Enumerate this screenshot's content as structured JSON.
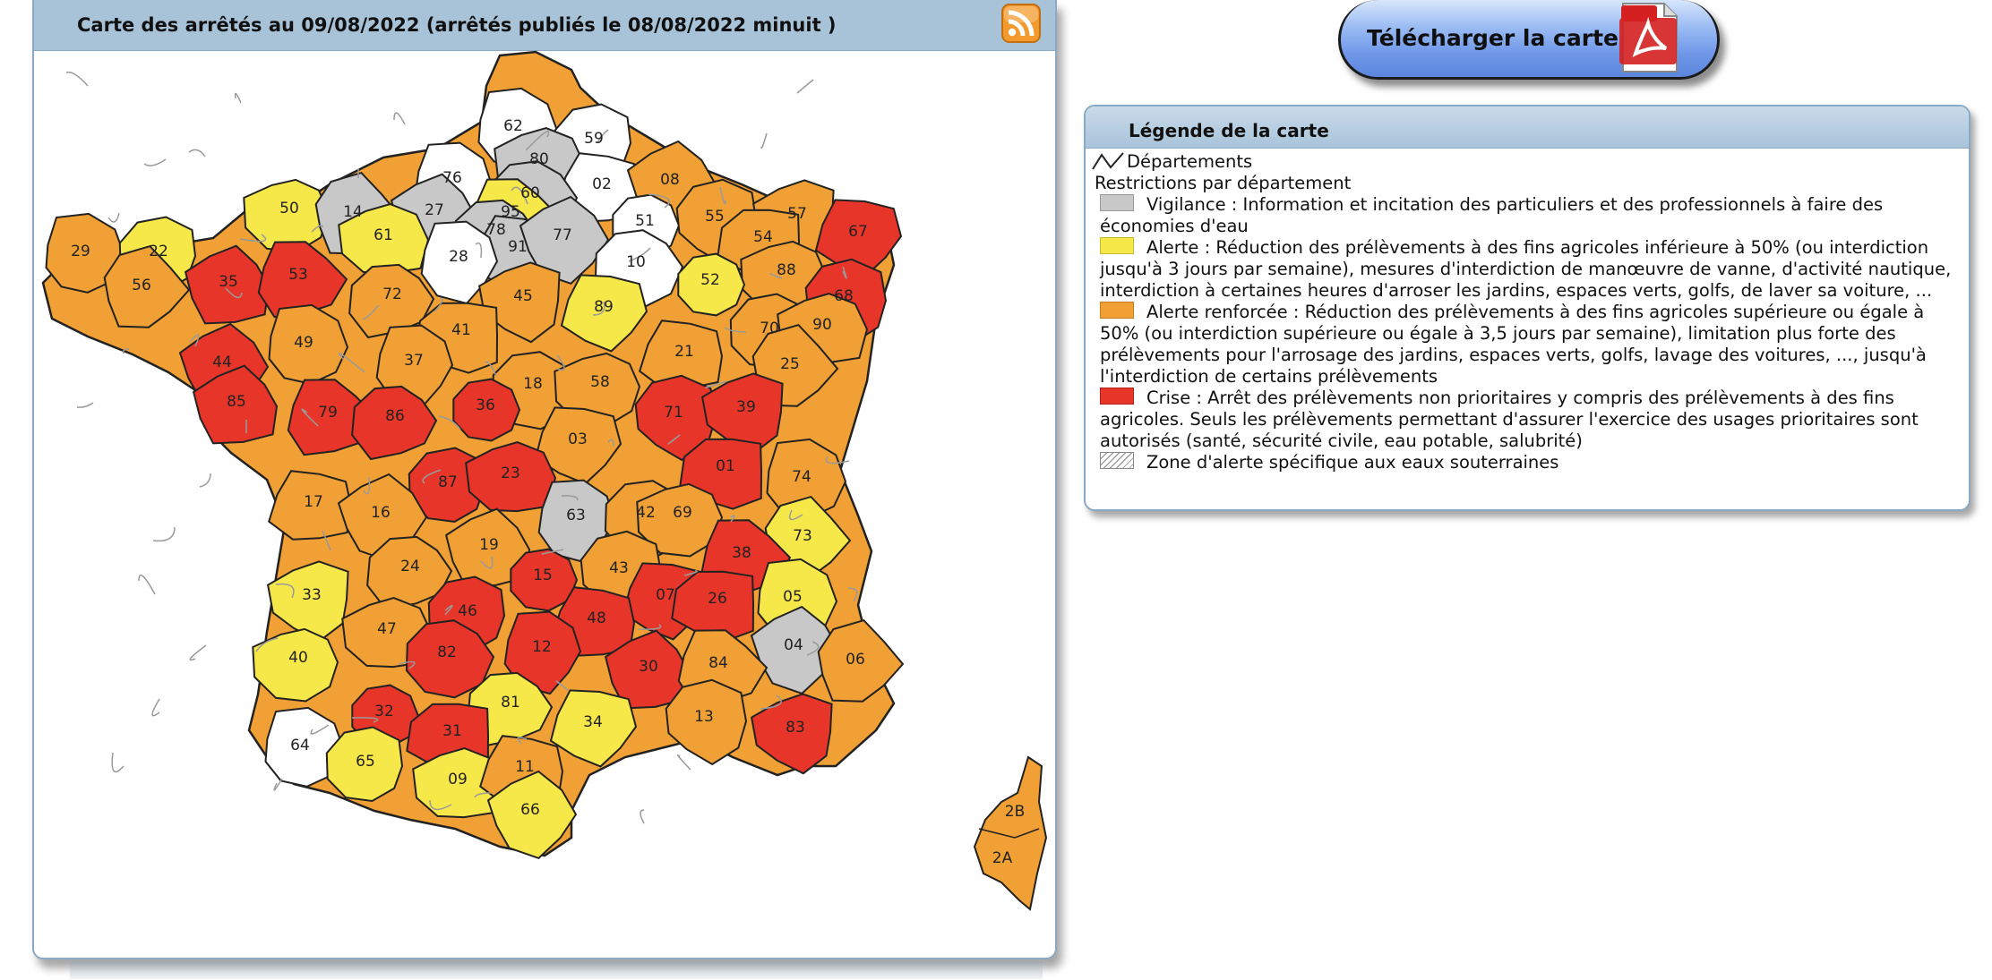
{
  "map_panel": {
    "title": "Carte des arrêtés au 09/08/2022 (arrêtés publiés le 08/08/2022 minuit )",
    "rss_icon": "rss-feed-icon"
  },
  "download": {
    "label": "Télécharger la carte",
    "icon": "pdf-file-icon"
  },
  "legend": {
    "title": "Légende de la carte",
    "departments_label": "Départements",
    "restrictions_label": "Restrictions par département",
    "items": [
      {
        "key": "vigilance",
        "color": "#c8c8c8",
        "text": "Vigilance : Information et incitation des particuliers et des professionnels à faire des économies d'eau"
      },
      {
        "key": "alerte",
        "color": "#f7e84a",
        "text": "Alerte : Réduction des prélèvements à des fins agricoles inférieure à 50% (ou interdiction jusqu'à 3 jours par semaine), mesures d'interdiction de manœuvre de vanne, d'activité nautique, interdiction à certaines heures d'arroser les jardins, espaces verts, golfs, de laver sa voiture, ..."
      },
      {
        "key": "alerte_renforcee",
        "color": "#f0a034",
        "text": "Alerte renforcée : Réduction des prélèvements à des fins agricoles supérieure ou égale à 50% (ou interdiction supérieure ou égale à 3,5 jours par semaine), limitation plus forte des prélèvements pour l'arrosage des jardins, espaces verts, golfs, lavage des voitures, ..., jusqu'à l'interdiction de certains prélèvements"
      },
      {
        "key": "crise",
        "color": "#e8352a",
        "text": "Crise : Arrêt des prélèvements non prioritaires y compris des prélèvements à des fins agricoles. Seuls les prélèvements permettant d'assurer l'exercice des usages prioritaires sont autorisés (santé, sécurité civile, eau potable, salubrité)"
      },
      {
        "key": "zone_souterraine",
        "color": "#ffffff",
        "text": "Zone d'alerte spécifique aux eaux souterraines"
      }
    ]
  },
  "departments": [
    {
      "code": "62",
      "level": "white"
    },
    {
      "code": "59",
      "level": "white"
    },
    {
      "code": "80",
      "level": "grey"
    },
    {
      "code": "02",
      "level": "white"
    },
    {
      "code": "08",
      "level": "orange"
    },
    {
      "code": "76",
      "level": "white"
    },
    {
      "code": "60",
      "level": "grey"
    },
    {
      "code": "50",
      "level": "yellow"
    },
    {
      "code": "14",
      "level": "grey"
    },
    {
      "code": "27",
      "level": "grey"
    },
    {
      "code": "95",
      "level": "yellow"
    },
    {
      "code": "78",
      "level": "grey"
    },
    {
      "code": "51",
      "level": "white"
    },
    {
      "code": "55",
      "level": "orange"
    },
    {
      "code": "57",
      "level": "orange"
    },
    {
      "code": "67",
      "level": "red"
    },
    {
      "code": "54",
      "level": "orange"
    },
    {
      "code": "29",
      "level": "orange"
    },
    {
      "code": "22",
      "level": "yellow"
    },
    {
      "code": "61",
      "level": "yellow"
    },
    {
      "code": "91",
      "level": "grey"
    },
    {
      "code": "77",
      "level": "grey"
    },
    {
      "code": "28",
      "level": "white"
    },
    {
      "code": "10",
      "level": "white"
    },
    {
      "code": "88",
      "level": "orange"
    },
    {
      "code": "56",
      "level": "orange"
    },
    {
      "code": "35",
      "level": "red"
    },
    {
      "code": "53",
      "level": "red"
    },
    {
      "code": "72",
      "level": "orange"
    },
    {
      "code": "52",
      "level": "yellow"
    },
    {
      "code": "68",
      "level": "red"
    },
    {
      "code": "45",
      "level": "orange"
    },
    {
      "code": "89",
      "level": "yellow"
    },
    {
      "code": "41",
      "level": "orange"
    },
    {
      "code": "49",
      "level": "orange"
    },
    {
      "code": "70",
      "level": "orange"
    },
    {
      "code": "90",
      "level": "orange"
    },
    {
      "code": "21",
      "level": "orange"
    },
    {
      "code": "44",
      "level": "red"
    },
    {
      "code": "37",
      "level": "orange"
    },
    {
      "code": "18",
      "level": "orange"
    },
    {
      "code": "58",
      "level": "orange"
    },
    {
      "code": "25",
      "level": "orange"
    },
    {
      "code": "85",
      "level": "red"
    },
    {
      "code": "79",
      "level": "red"
    },
    {
      "code": "86",
      "level": "red"
    },
    {
      "code": "36",
      "level": "red"
    },
    {
      "code": "71",
      "level": "red"
    },
    {
      "code": "39",
      "level": "red"
    },
    {
      "code": "03",
      "level": "orange"
    },
    {
      "code": "01",
      "level": "red"
    },
    {
      "code": "74",
      "level": "orange"
    },
    {
      "code": "87",
      "level": "red"
    },
    {
      "code": "23",
      "level": "red"
    },
    {
      "code": "17",
      "level": "orange"
    },
    {
      "code": "16",
      "level": "orange"
    },
    {
      "code": "63",
      "level": "grey"
    },
    {
      "code": "42",
      "level": "orange"
    },
    {
      "code": "69",
      "level": "orange"
    },
    {
      "code": "73",
      "level": "yellow"
    },
    {
      "code": "19",
      "level": "orange"
    },
    {
      "code": "38",
      "level": "red"
    },
    {
      "code": "24",
      "level": "orange"
    },
    {
      "code": "15",
      "level": "red"
    },
    {
      "code": "43",
      "level": "orange"
    },
    {
      "code": "33",
      "level": "yellow"
    },
    {
      "code": "07",
      "level": "red"
    },
    {
      "code": "26",
      "level": "red"
    },
    {
      "code": "05",
      "level": "yellow"
    },
    {
      "code": "46",
      "level": "red"
    },
    {
      "code": "47",
      "level": "orange"
    },
    {
      "code": "48",
      "level": "red"
    },
    {
      "code": "04",
      "level": "grey"
    },
    {
      "code": "12",
      "level": "red"
    },
    {
      "code": "82",
      "level": "red"
    },
    {
      "code": "40",
      "level": "yellow"
    },
    {
      "code": "06",
      "level": "orange"
    },
    {
      "code": "30",
      "level": "red"
    },
    {
      "code": "84",
      "level": "orange"
    },
    {
      "code": "81",
      "level": "yellow"
    },
    {
      "code": "32",
      "level": "red"
    },
    {
      "code": "13",
      "level": "orange"
    },
    {
      "code": "83",
      "level": "red"
    },
    {
      "code": "34",
      "level": "yellow"
    },
    {
      "code": "31",
      "level": "red"
    },
    {
      "code": "64",
      "level": "white"
    },
    {
      "code": "65",
      "level": "yellow"
    },
    {
      "code": "09",
      "level": "yellow"
    },
    {
      "code": "11",
      "level": "orange"
    },
    {
      "code": "66",
      "level": "yellow"
    },
    {
      "code": "2B",
      "level": "orange"
    },
    {
      "code": "2A",
      "level": "orange"
    }
  ],
  "level_colors": {
    "white": "#ffffff",
    "grey": "#c8c8c8",
    "yellow": "#f7e84a",
    "orange": "#f0a034",
    "red": "#e8352a"
  }
}
